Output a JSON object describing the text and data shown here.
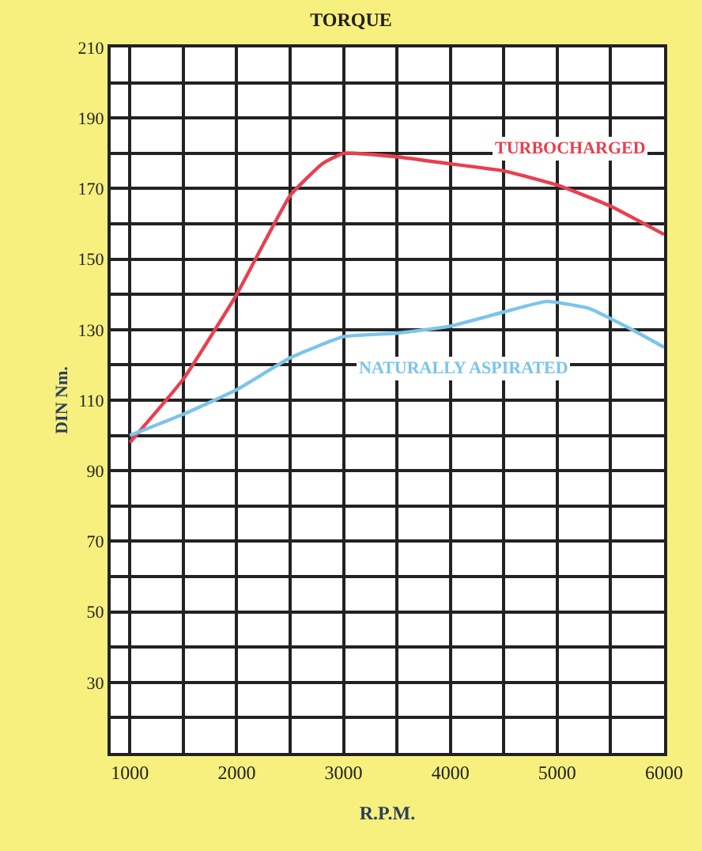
{
  "chart_data": {
    "type": "line",
    "title": "TORQUE",
    "xlabel": "R.P.M.",
    "ylabel": "DIN Nm.",
    "x": [
      1000,
      1500,
      2000,
      2500,
      2800,
      3000,
      3500,
      4000,
      4500,
      5000,
      5500,
      6000
    ],
    "series": [
      {
        "name": "TURBOCHARGED",
        "color": "#e8404f",
        "values": [
          98,
          116,
          140,
          168,
          177,
          180,
          179,
          177,
          175,
          171,
          165,
          157
        ]
      },
      {
        "name": "NATURALLY ASPIRATED",
        "color": "#7cc4ea",
        "x": [
          1000,
          1500,
          2000,
          2500,
          3000,
          3500,
          4000,
          4500,
          4900,
          5300,
          5700,
          6000
        ],
        "values": [
          100,
          106,
          113,
          122,
          128,
          129,
          131,
          135,
          138,
          136,
          130,
          125
        ]
      }
    ],
    "xlim": [
      820,
      6000
    ],
    "ylim": [
      10,
      210
    ],
    "xticks": [
      1000,
      2000,
      3000,
      4000,
      5000,
      6000
    ],
    "yticks": [
      30,
      50,
      70,
      90,
      110,
      130,
      150,
      170,
      190,
      210
    ],
    "grid": true,
    "legend": false
  }
}
